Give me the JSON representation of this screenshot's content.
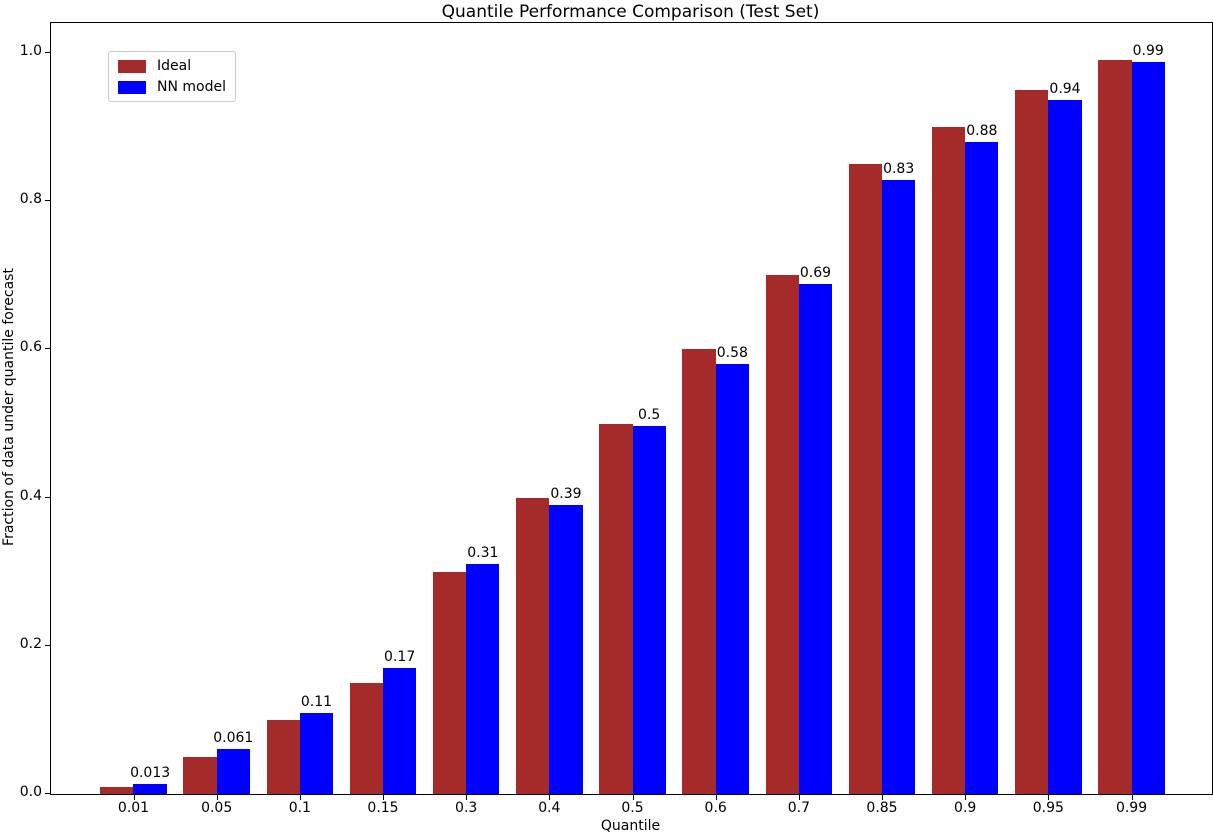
{
  "chart_data": {
    "type": "bar",
    "title": "Quantile Performance Comparison (Test Set)",
    "xlabel": "Quantile",
    "ylabel": "Fraction of data under quantile forecast",
    "categories": [
      "0.01",
      "0.05",
      "0.1",
      "0.15",
      "0.3",
      "0.4",
      "0.5",
      "0.6",
      "0.7",
      "0.85",
      "0.9",
      "0.95",
      "0.99"
    ],
    "series": [
      {
        "name": "Ideal",
        "color": "#a52a2a",
        "values": [
          0.01,
          0.05,
          0.1,
          0.15,
          0.3,
          0.4,
          0.5,
          0.6,
          0.7,
          0.85,
          0.9,
          0.95,
          0.99
        ]
      },
      {
        "name": "NN model",
        "color": "#0000ff",
        "values": [
          0.013,
          0.061,
          0.11,
          0.17,
          0.31,
          0.39,
          0.497,
          0.58,
          0.688,
          0.828,
          0.88,
          0.937,
          0.988
        ]
      }
    ],
    "bar_labels": [
      "0.013",
      "0.061",
      "0.11",
      "0.17",
      "0.31",
      "0.39",
      "0.5",
      "0.58",
      "0.69",
      "0.83",
      "0.88",
      "0.94",
      "0.99"
    ],
    "yticks": [
      "0.0",
      "0.2",
      "0.4",
      "0.6",
      "0.8",
      "1.0"
    ],
    "ylim": [
      0,
      1.04
    ],
    "grid": false,
    "legend_position": "upper-left"
  }
}
